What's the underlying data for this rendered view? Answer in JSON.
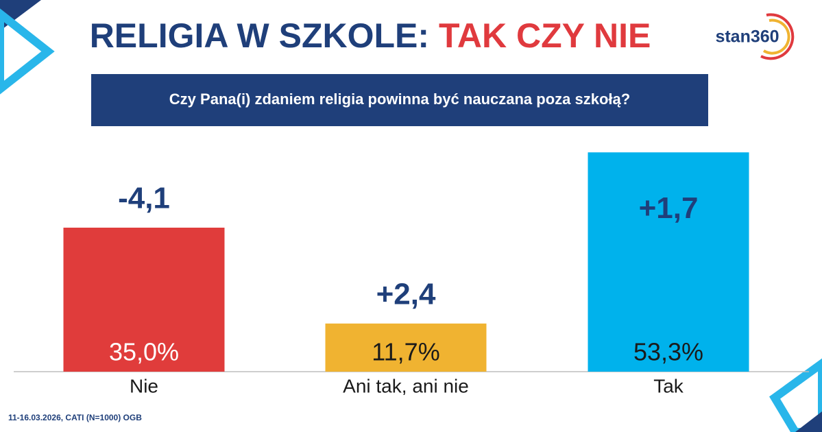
{
  "chart_data": {
    "type": "bar",
    "title": "RELIGIA W SZKOLE:",
    "title_highlight": "TAK CZY NIE",
    "subtitle": "Czy Pana(i) zdaniem religia powinna być nauczana poza szkołą?",
    "logo": "stan360",
    "note": "11-16.03.2026, CATI (N=1000) OGB",
    "categories": [
      "Nie",
      "Ani tak, ani nie",
      "Tak"
    ],
    "values": [
      35.0,
      11.7,
      53.3
    ],
    "value_labels": [
      "35,0%",
      "11,7%",
      "53,3%"
    ],
    "value_label_colors": [
      "#ffffff",
      "#1a1a1a",
      "#1a1a1a"
    ],
    "colors": [
      "#e03c3b",
      "#f0b331",
      "#00b2ec"
    ],
    "changes": [
      -4.1,
      2.4,
      1.7
    ],
    "change_labels": [
      "-4,1",
      "+2,4",
      "+1,7"
    ],
    "ylim": [
      0,
      60
    ]
  }
}
